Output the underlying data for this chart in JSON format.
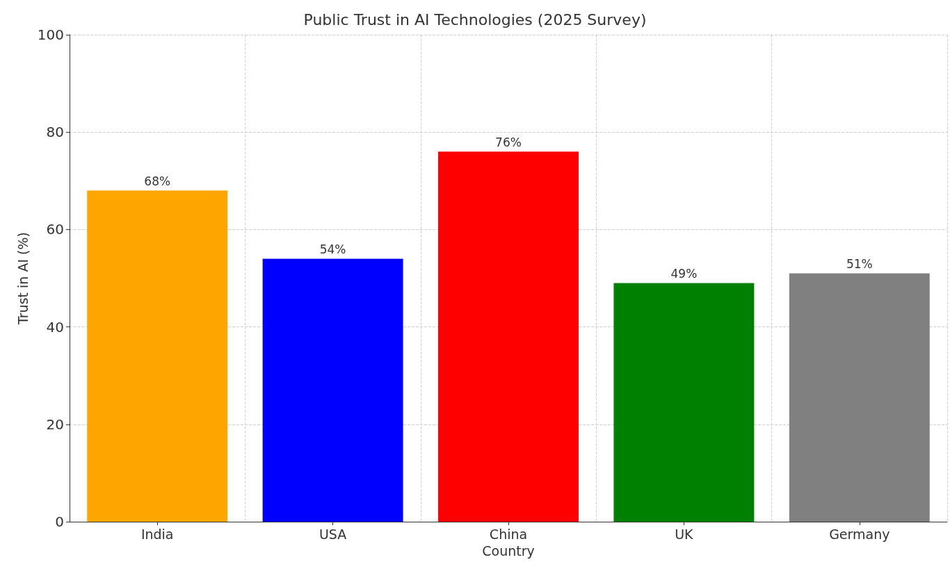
{
  "chart_data": {
    "type": "bar",
    "title": "Public Trust in AI Technologies (2025 Survey)",
    "xlabel": "Country",
    "ylabel": "Trust in AI (%)",
    "categories": [
      "India",
      "USA",
      "China",
      "UK",
      "Germany"
    ],
    "values": [
      68,
      54,
      76,
      49,
      51
    ],
    "value_labels": [
      "68%",
      "54%",
      "76%",
      "49%",
      "51%"
    ],
    "colors": [
      "#ffa500",
      "#0000ff",
      "#ff0000",
      "#008000",
      "#808080"
    ],
    "ylim": [
      0,
      100
    ],
    "yticks": [
      0,
      20,
      40,
      60,
      80,
      100
    ],
    "grid": true
  }
}
